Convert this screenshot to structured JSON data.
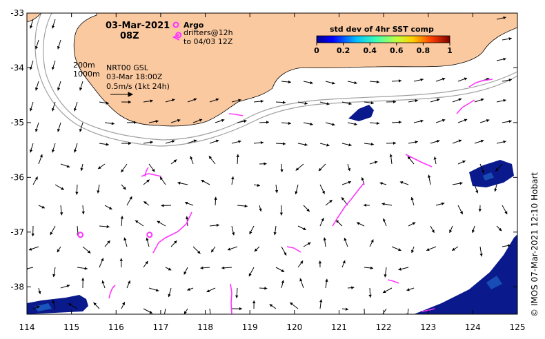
{
  "map": {
    "date_line": "03-Mar-2021",
    "time_line": "08Z",
    "legend": {
      "argo_label": "Argo",
      "drifters_label": "drifters@12h",
      "drifters_to": "to 04/03 12Z"
    },
    "isobaths": {
      "shallow": "200m",
      "deep": "1000m"
    },
    "product": {
      "name": "NRT00 GSL",
      "time": "03-Mar 18:00Z",
      "scale_label": "0.5m/s (1kt 24h)"
    },
    "colorbar": {
      "title": "std dev of 4hr SST comp",
      "ticks": [
        "0",
        "0.2",
        "0.4",
        "0.6",
        "0.8",
        "1"
      ]
    },
    "credit": "© IMOS 07-Mar-2021 12:10 Hobart",
    "colors": {
      "land": "#fac9a0",
      "ocean": "#ffffff",
      "drifter": "#ff33ff",
      "argo": "#ff33ff",
      "isobath": "#a0a0a0",
      "sst_patch": "#0a1a8c"
    },
    "axes": {
      "x_ticks": [
        "114",
        "115",
        "116",
        "117",
        "118",
        "119",
        "120",
        "121",
        "122",
        "123",
        "124",
        "125"
      ],
      "y_ticks": [
        "-33",
        "-34",
        "-35",
        "-36",
        "-37",
        "-38"
      ],
      "lon_range": [
        114,
        125
      ],
      "lat_range": [
        -38.5,
        -33
      ]
    },
    "argo_floats": [
      {
        "lon": 115.2,
        "lat": -37.05
      },
      {
        "lon": 116.75,
        "lat": -37.05
      },
      {
        "lon": 117.4,
        "lat": -33.4
      }
    ]
  }
}
